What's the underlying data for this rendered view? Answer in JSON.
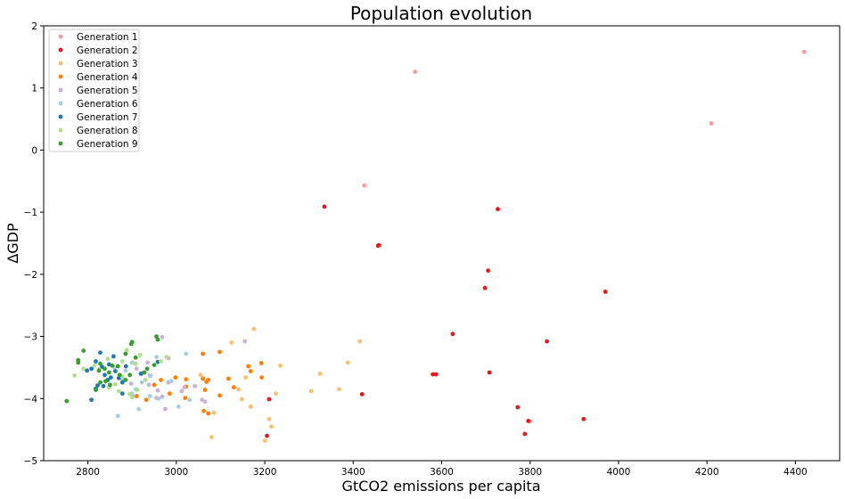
{
  "chart_data": {
    "type": "scatter",
    "title": "Population evolution",
    "xlabel": "GtCO2 emissions per capita",
    "ylabel": "ΔGDP",
    "xlim": [
      2700,
      4500
    ],
    "ylim": [
      -5,
      2
    ],
    "xticks": [
      2800,
      3000,
      3200,
      3400,
      3600,
      3800,
      4000,
      4200,
      4400
    ],
    "yticks": [
      -5,
      -4,
      -3,
      -2,
      -1,
      0,
      1,
      2
    ],
    "grid": false,
    "legend_position": "top-left",
    "series": [
      {
        "name": "Generation 1",
        "color": "#fb9a99",
        "points": [
          [
            4420,
            1.58
          ],
          [
            3540,
            1.26
          ],
          [
            4210,
            0.43
          ],
          [
            3425,
            -0.57
          ],
          [
            3800,
            -4.37
          ]
        ]
      },
      {
        "name": "Generation 2",
        "color": "#e31a1c",
        "points": [
          [
            3335,
            -0.91
          ],
          [
            3727,
            -0.95
          ],
          [
            3458,
            -1.53
          ],
          [
            3456,
            -1.54
          ],
          [
            3705,
            -1.94
          ],
          [
            3698,
            -2.22
          ],
          [
            3970,
            -2.28
          ],
          [
            3625,
            -2.96
          ],
          [
            3838,
            -3.08
          ],
          [
            3708,
            -3.58
          ],
          [
            3580,
            -3.61
          ],
          [
            3587,
            -3.61
          ],
          [
            3420,
            -3.93
          ],
          [
            3772,
            -4.14
          ],
          [
            3796,
            -4.36
          ],
          [
            3921,
            -4.33
          ],
          [
            3788,
            -4.57
          ],
          [
            3210,
            -4.01
          ],
          [
            3205,
            -4.6
          ]
        ]
      },
      {
        "name": "Generation 3",
        "color": "#fdbf6f",
        "points": [
          [
            3175,
            -2.88
          ],
          [
            3415,
            -3.08
          ],
          [
            3125,
            -3.1
          ],
          [
            3388,
            -3.42
          ],
          [
            3235,
            -3.47
          ],
          [
            3325,
            -3.6
          ],
          [
            3157,
            -3.66
          ],
          [
            3140,
            -3.85
          ],
          [
            3368,
            -3.85
          ],
          [
            3305,
            -3.88
          ],
          [
            3225,
            -3.92
          ],
          [
            3148,
            -4.01
          ],
          [
            3168,
            -4.13
          ],
          [
            3085,
            -4.23
          ],
          [
            3210,
            -4.33
          ],
          [
            3215,
            -4.45
          ],
          [
            3080,
            -4.62
          ],
          [
            3200,
            -4.68
          ],
          [
            3055,
            -3.62
          ]
        ]
      },
      {
        "name": "Generation 4",
        "color": "#ff7f00",
        "points": [
          [
            3098,
            -3.25
          ],
          [
            3060,
            -3.28
          ],
          [
            3192,
            -3.43
          ],
          [
            3163,
            -3.48
          ],
          [
            3168,
            -3.56
          ],
          [
            2998,
            -3.66
          ],
          [
            3060,
            -3.68
          ],
          [
            3118,
            -3.68
          ],
          [
            3022,
            -3.69
          ],
          [
            3072,
            -3.7
          ],
          [
            3068,
            -3.73
          ],
          [
            3193,
            -3.66
          ],
          [
            3022,
            -3.81
          ],
          [
            3130,
            -3.82
          ],
          [
            3065,
            -3.86
          ],
          [
            2985,
            -3.92
          ],
          [
            3098,
            -3.95
          ],
          [
            2910,
            -3.96
          ],
          [
            3020,
            -3.99
          ],
          [
            2932,
            -4.02
          ],
          [
            3062,
            -4.2
          ],
          [
            3072,
            -4.24
          ],
          [
            2950,
            -3.78
          ],
          [
            2965,
            -3.7
          ]
        ]
      },
      {
        "name": "Generation 5",
        "color": "#cab2d6",
        "points": [
          [
            2968,
            -3.01
          ],
          [
            3155,
            -3.08
          ],
          [
            2982,
            -3.35
          ],
          [
            2935,
            -3.42
          ],
          [
            2910,
            -3.52
          ],
          [
            2925,
            -3.58
          ],
          [
            2940,
            -3.63
          ],
          [
            2982,
            -3.74
          ],
          [
            2988,
            -3.72
          ],
          [
            2898,
            -3.76
          ],
          [
            2938,
            -3.78
          ],
          [
            3018,
            -3.82
          ],
          [
            3042,
            -3.8
          ],
          [
            2958,
            -3.87
          ],
          [
            3012,
            -3.88
          ],
          [
            2968,
            -3.97
          ],
          [
            2902,
            -3.96
          ],
          [
            2955,
            -3.99
          ],
          [
            3058,
            -4.02
          ],
          [
            3065,
            -4.05
          ],
          [
            2975,
            -4.17
          ]
        ]
      },
      {
        "name": "Generation 6",
        "color": "#a6cee3",
        "points": [
          [
            3022,
            -3.28
          ],
          [
            2955,
            -3.33
          ],
          [
            2900,
            -3.42
          ],
          [
            2885,
            -3.55
          ],
          [
            2922,
            -3.6
          ],
          [
            2942,
            -3.63
          ],
          [
            2988,
            -3.72
          ],
          [
            2922,
            -3.74
          ],
          [
            2908,
            -3.85
          ],
          [
            2900,
            -3.92
          ],
          [
            2940,
            -3.96
          ],
          [
            2960,
            -4.0
          ],
          [
            3030,
            -4.02
          ],
          [
            3005,
            -4.13
          ],
          [
            2915,
            -4.17
          ],
          [
            2868,
            -4.28
          ],
          [
            2860,
            -3.5
          ],
          [
            2878,
            -3.7
          ]
        ]
      },
      {
        "name": "Generation 7",
        "color": "#1f78b4",
        "points": [
          [
            2828,
            -3.26
          ],
          [
            2958,
            -3.41
          ],
          [
            2818,
            -3.4
          ],
          [
            2858,
            -3.32
          ],
          [
            2808,
            -3.52
          ],
          [
            2798,
            -3.55
          ],
          [
            2848,
            -3.45
          ],
          [
            2832,
            -3.49
          ],
          [
            2862,
            -3.56
          ],
          [
            2838,
            -3.62
          ],
          [
            2852,
            -3.66
          ],
          [
            2870,
            -3.67
          ],
          [
            2845,
            -3.7
          ],
          [
            2878,
            -3.74
          ],
          [
            2822,
            -3.79
          ],
          [
            2835,
            -3.8
          ],
          [
            2848,
            -3.82
          ],
          [
            2818,
            -3.84
          ],
          [
            2878,
            -3.92
          ],
          [
            2808,
            -4.02
          ],
          [
            2886,
            -3.48
          ],
          [
            2920,
            -3.6
          ]
        ]
      },
      {
        "name": "Generation 8",
        "color": "#b2df8a",
        "points": [
          [
            2898,
            -3.12
          ],
          [
            2888,
            -3.22
          ],
          [
            2918,
            -3.3
          ],
          [
            2845,
            -3.36
          ],
          [
            2878,
            -3.4
          ],
          [
            2908,
            -3.44
          ],
          [
            2815,
            -3.47
          ],
          [
            2790,
            -3.52
          ],
          [
            2825,
            -3.53
          ],
          [
            2770,
            -3.63
          ],
          [
            2878,
            -3.65
          ],
          [
            2930,
            -3.7
          ],
          [
            2862,
            -3.77
          ],
          [
            2848,
            -3.82
          ],
          [
            2912,
            -3.86
          ],
          [
            2870,
            -3.88
          ],
          [
            2895,
            -3.93
          ],
          [
            2900,
            -3.98
          ],
          [
            2978,
            -3.33
          ],
          [
            2965,
            -3.4
          ]
        ]
      },
      {
        "name": "Generation 9",
        "color": "#33a02c",
        "points": [
          [
            2790,
            -3.23
          ],
          [
            2955,
            -3.0
          ],
          [
            2958,
            -3.05
          ],
          [
            2900,
            -3.09
          ],
          [
            2898,
            -3.12
          ],
          [
            2885,
            -3.28
          ],
          [
            2908,
            -3.34
          ],
          [
            2778,
            -3.38
          ],
          [
            2778,
            -3.42
          ],
          [
            2828,
            -3.44
          ],
          [
            2855,
            -3.47
          ],
          [
            2868,
            -3.48
          ],
          [
            2838,
            -3.52
          ],
          [
            2825,
            -3.55
          ],
          [
            2848,
            -3.58
          ],
          [
            2928,
            -3.58
          ],
          [
            2872,
            -3.62
          ],
          [
            2895,
            -3.62
          ],
          [
            2885,
            -3.7
          ],
          [
            2840,
            -3.72
          ],
          [
            2828,
            -3.74
          ],
          [
            2850,
            -3.78
          ],
          [
            2818,
            -3.86
          ],
          [
            2752,
            -4.04
          ],
          [
            2950,
            -3.46
          ],
          [
            2934,
            -3.52
          ]
        ]
      }
    ]
  }
}
